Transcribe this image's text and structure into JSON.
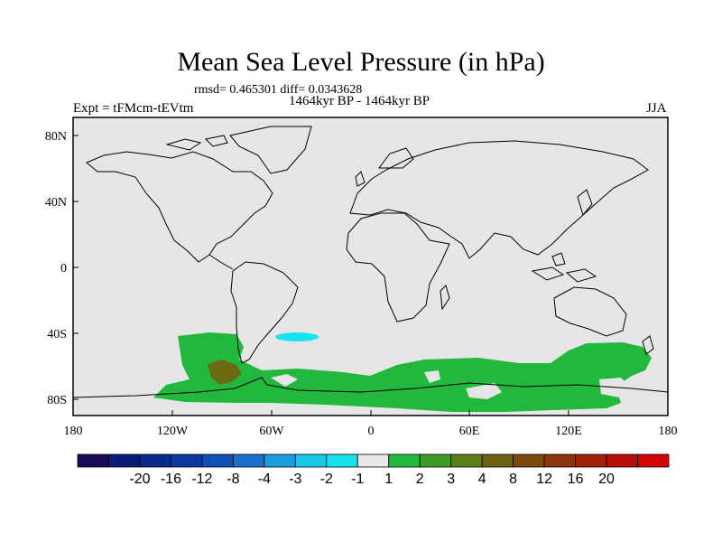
{
  "figure": {
    "title": "Mean Sea Level Pressure (in hPa)",
    "stats_line": "rmsd= 0.465301 diff= 0.0343628",
    "period_line": "1464kyr BP - 1464kyr BP",
    "experiment": "Expt = tFMcm-tEVtm",
    "season": "JJA"
  },
  "map": {
    "lon_ticks": [
      "180",
      "120W",
      "60W",
      "0",
      "60E",
      "120E",
      "180"
    ],
    "lat_ticks": [
      "80N",
      "40N",
      "0",
      "40S",
      "80S"
    ]
  },
  "colorbar": {
    "colors": [
      "#1a0a5a",
      "#0a1c78",
      "#0a2a8c",
      "#0e3aa0",
      "#0f4fb8",
      "#1a6fd0",
      "#1a9ee0",
      "#18c8e8",
      "#19e2ef",
      "#e8e8e8",
      "#22b83e",
      "#3f9b28",
      "#5a7f18",
      "#6d6010",
      "#7c4a0c",
      "#8e360a",
      "#a02008",
      "#b80e08",
      "#d40404"
    ],
    "labels": [
      "-20",
      "-16",
      "-12",
      "-8",
      "-4",
      "-3",
      "-2",
      "-1",
      "1",
      "2",
      "3",
      "4",
      "8",
      "12",
      "16",
      "20"
    ]
  }
}
